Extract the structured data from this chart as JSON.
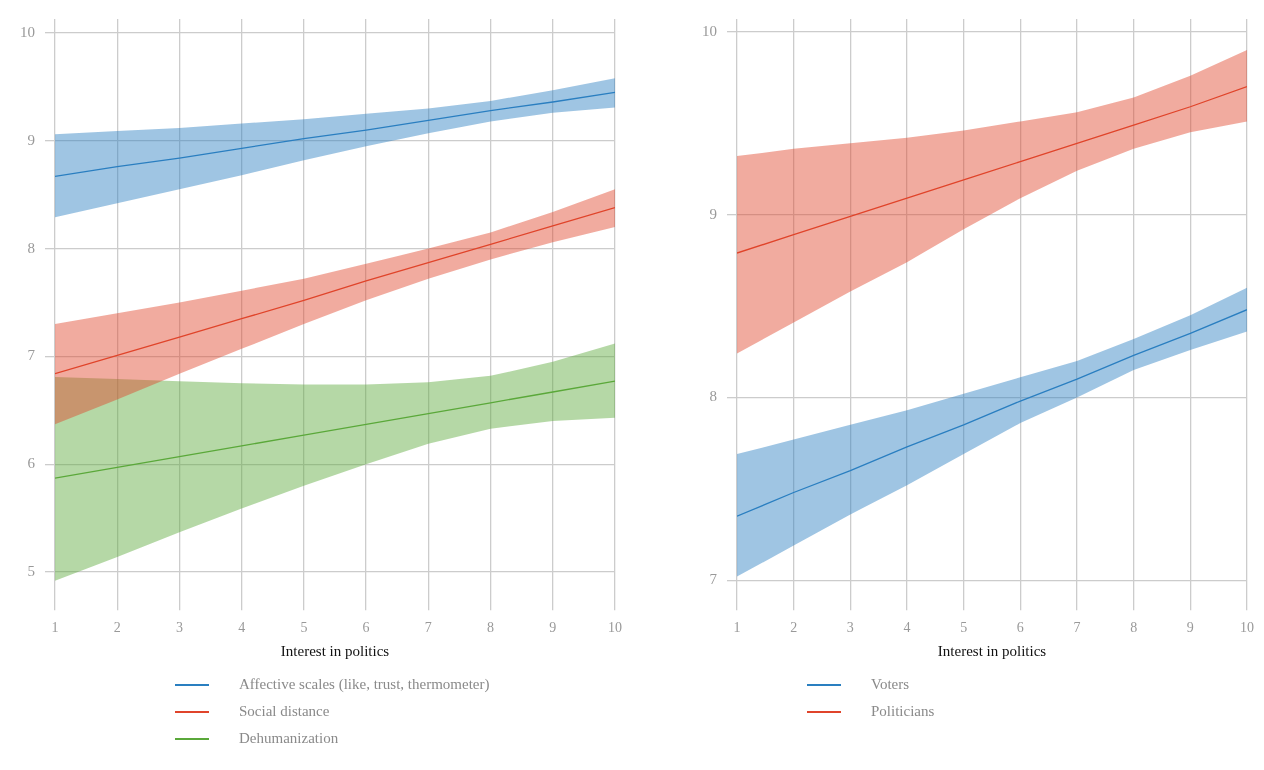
{
  "chart_data": [
    {
      "type": "line",
      "xlabel": "Interest in politics",
      "x": [
        1,
        2,
        3,
        4,
        5,
        6,
        7,
        8,
        9,
        10
      ],
      "xlim": [
        1,
        10
      ],
      "xticks": [
        1,
        2,
        3,
        4,
        5,
        6,
        7,
        8,
        9,
        10
      ],
      "ylim": [
        4.72,
        10.13
      ],
      "yticks": [
        5,
        6,
        7,
        8,
        9,
        10
      ],
      "grid": true,
      "legend": "bottom",
      "marker": "none",
      "series": [
        {
          "name": "Affective scales (like, trust, thermometer)",
          "color": "#2a7fc0",
          "values": [
            8.67,
            8.76,
            8.84,
            8.93,
            9.02,
            9.1,
            9.19,
            9.28,
            9.36,
            9.45
          ],
          "lower": [
            8.29,
            8.42,
            8.55,
            8.68,
            8.82,
            8.95,
            9.07,
            9.18,
            9.26,
            9.31
          ],
          "upper": [
            9.06,
            9.09,
            9.12,
            9.16,
            9.2,
            9.25,
            9.3,
            9.37,
            9.47,
            9.58
          ]
        },
        {
          "name": "Social distance",
          "color": "#e0442b",
          "values": [
            6.84,
            7.01,
            7.18,
            7.35,
            7.52,
            7.7,
            7.87,
            8.04,
            8.21,
            8.38
          ],
          "lower": [
            6.37,
            6.6,
            6.84,
            7.07,
            7.3,
            7.52,
            7.72,
            7.9,
            8.06,
            8.2
          ],
          "upper": [
            7.3,
            7.4,
            7.5,
            7.61,
            7.72,
            7.86,
            8.0,
            8.15,
            8.34,
            8.55
          ]
        },
        {
          "name": "Dehumanization",
          "color": "#5aa83a",
          "values": [
            5.87,
            5.97,
            6.07,
            6.17,
            6.27,
            6.37,
            6.47,
            6.57,
            6.67,
            6.77
          ],
          "lower": [
            4.92,
            5.14,
            5.37,
            5.59,
            5.8,
            6.0,
            6.19,
            6.33,
            6.4,
            6.43
          ],
          "upper": [
            6.81,
            6.79,
            6.77,
            6.75,
            6.74,
            6.74,
            6.76,
            6.82,
            6.95,
            7.12
          ]
        }
      ]
    },
    {
      "type": "line",
      "xlabel": "Interest in politics",
      "x": [
        1,
        2,
        3,
        4,
        5,
        6,
        7,
        8,
        9,
        10
      ],
      "xlim": [
        1,
        10
      ],
      "xticks": [
        1,
        2,
        3,
        4,
        5,
        6,
        7,
        8,
        9,
        10
      ],
      "ylim": [
        6.88,
        10.07
      ],
      "yticks": [
        7,
        8,
        9,
        10
      ],
      "grid": true,
      "legend": "bottom",
      "marker": "none",
      "series": [
        {
          "name": "Voters",
          "color": "#2a7fc0",
          "values": [
            7.35,
            7.48,
            7.6,
            7.73,
            7.85,
            7.98,
            8.1,
            8.23,
            8.35,
            8.48
          ],
          "lower": [
            7.02,
            7.19,
            7.36,
            7.52,
            7.69,
            7.86,
            8.0,
            8.15,
            8.26,
            8.36
          ],
          "upper": [
            7.69,
            7.77,
            7.85,
            7.93,
            8.02,
            8.11,
            8.2,
            8.32,
            8.45,
            8.6
          ]
        },
        {
          "name": "Politicians",
          "color": "#e0442b",
          "values": [
            8.79,
            8.89,
            8.99,
            9.09,
            9.19,
            9.29,
            9.39,
            9.49,
            9.59,
            9.7
          ],
          "lower": [
            8.24,
            8.41,
            8.58,
            8.74,
            8.92,
            9.09,
            9.24,
            9.36,
            9.45,
            9.51
          ],
          "upper": [
            9.32,
            9.36,
            9.39,
            9.42,
            9.46,
            9.51,
            9.56,
            9.64,
            9.76,
            9.9
          ]
        }
      ]
    }
  ]
}
